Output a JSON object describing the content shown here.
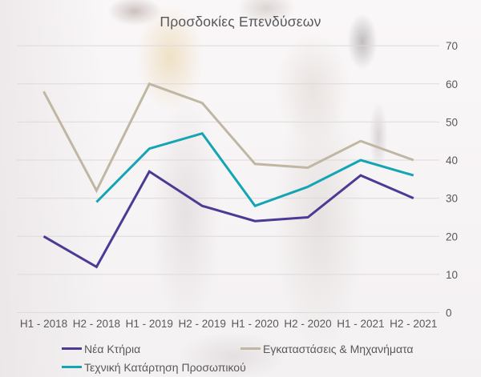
{
  "title": "Προσδοκίες Επενδύσεων",
  "colors": {
    "text": "#595959",
    "grid": "#DDDADB",
    "purple": "#4C3A94",
    "beige": "#BFB7A2",
    "teal": "#14A5B5"
  },
  "chart_data": {
    "type": "line",
    "title": "Προσδοκίες Επενδύσεων",
    "categories": [
      "H1 - 2018",
      "H2 - 2018",
      "H1 - 2019",
      "H2 - 2019",
      "H1 - 2020",
      "H2 - 2020",
      "H1 - 2021",
      "H2 - 2021"
    ],
    "series": [
      {
        "name": "Νέα Κτήρια",
        "color_key": "purple",
        "values": [
          20,
          12,
          37,
          28,
          24,
          25,
          36,
          30
        ]
      },
      {
        "name": "Εγκαταστάσεις & Μηχανήματα",
        "color_key": "beige",
        "values": [
          58,
          32,
          60,
          55,
          39,
          38,
          45,
          40
        ]
      },
      {
        "name": "Τεχνική Κατάρτηση Προσωπικού",
        "color_key": "teal",
        "values": [
          null,
          29,
          43,
          47,
          28,
          33,
          40,
          36
        ]
      }
    ],
    "y_ticks": [
      0,
      10,
      20,
      30,
      40,
      50,
      60,
      70
    ],
    "ylim": [
      0,
      70
    ],
    "grid": true,
    "y_axis_side": "right",
    "legend_position": "bottom",
    "xlabel": "",
    "ylabel": ""
  }
}
